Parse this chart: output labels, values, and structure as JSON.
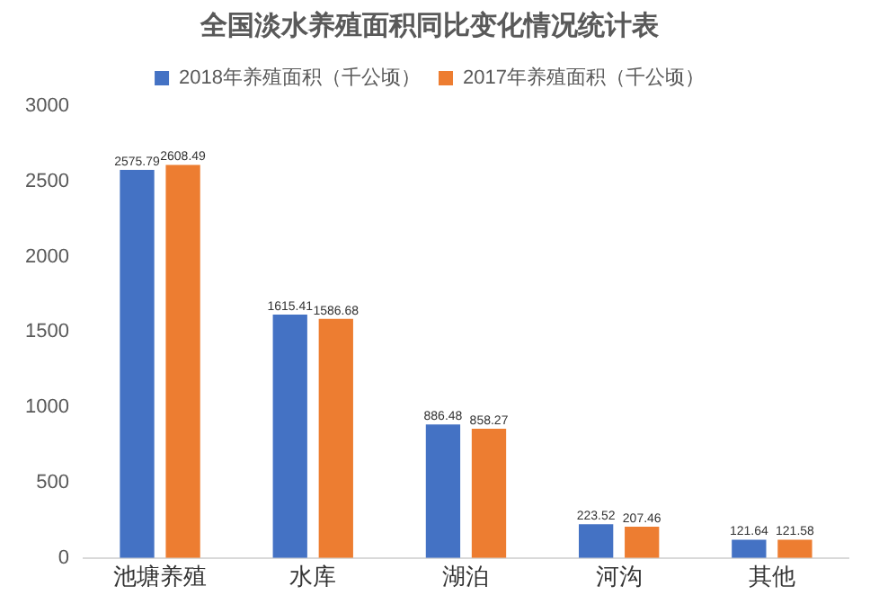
{
  "chart_data": {
    "type": "bar",
    "title": "全国淡水养殖面积同比变化情况统计表",
    "categories": [
      "池塘养殖",
      "水库",
      "湖泊",
      "河沟",
      "其他"
    ],
    "series": [
      {
        "name": "2018年养殖面积（千公顷）",
        "color": "#4472c4",
        "values": [
          2575.79,
          1615.41,
          886.48,
          223.52,
          121.64
        ]
      },
      {
        "name": "2017年养殖面积（千公顷）",
        "color": "#ed7d31",
        "values": [
          2608.49,
          1586.68,
          858.27,
          207.46,
          121.58
        ]
      }
    ],
    "ylim": [
      0,
      3000
    ],
    "yticks": [
      0,
      500,
      1000,
      1500,
      2000,
      2500,
      3000
    ],
    "grid": false,
    "legend": "top",
    "data_labels": true
  }
}
